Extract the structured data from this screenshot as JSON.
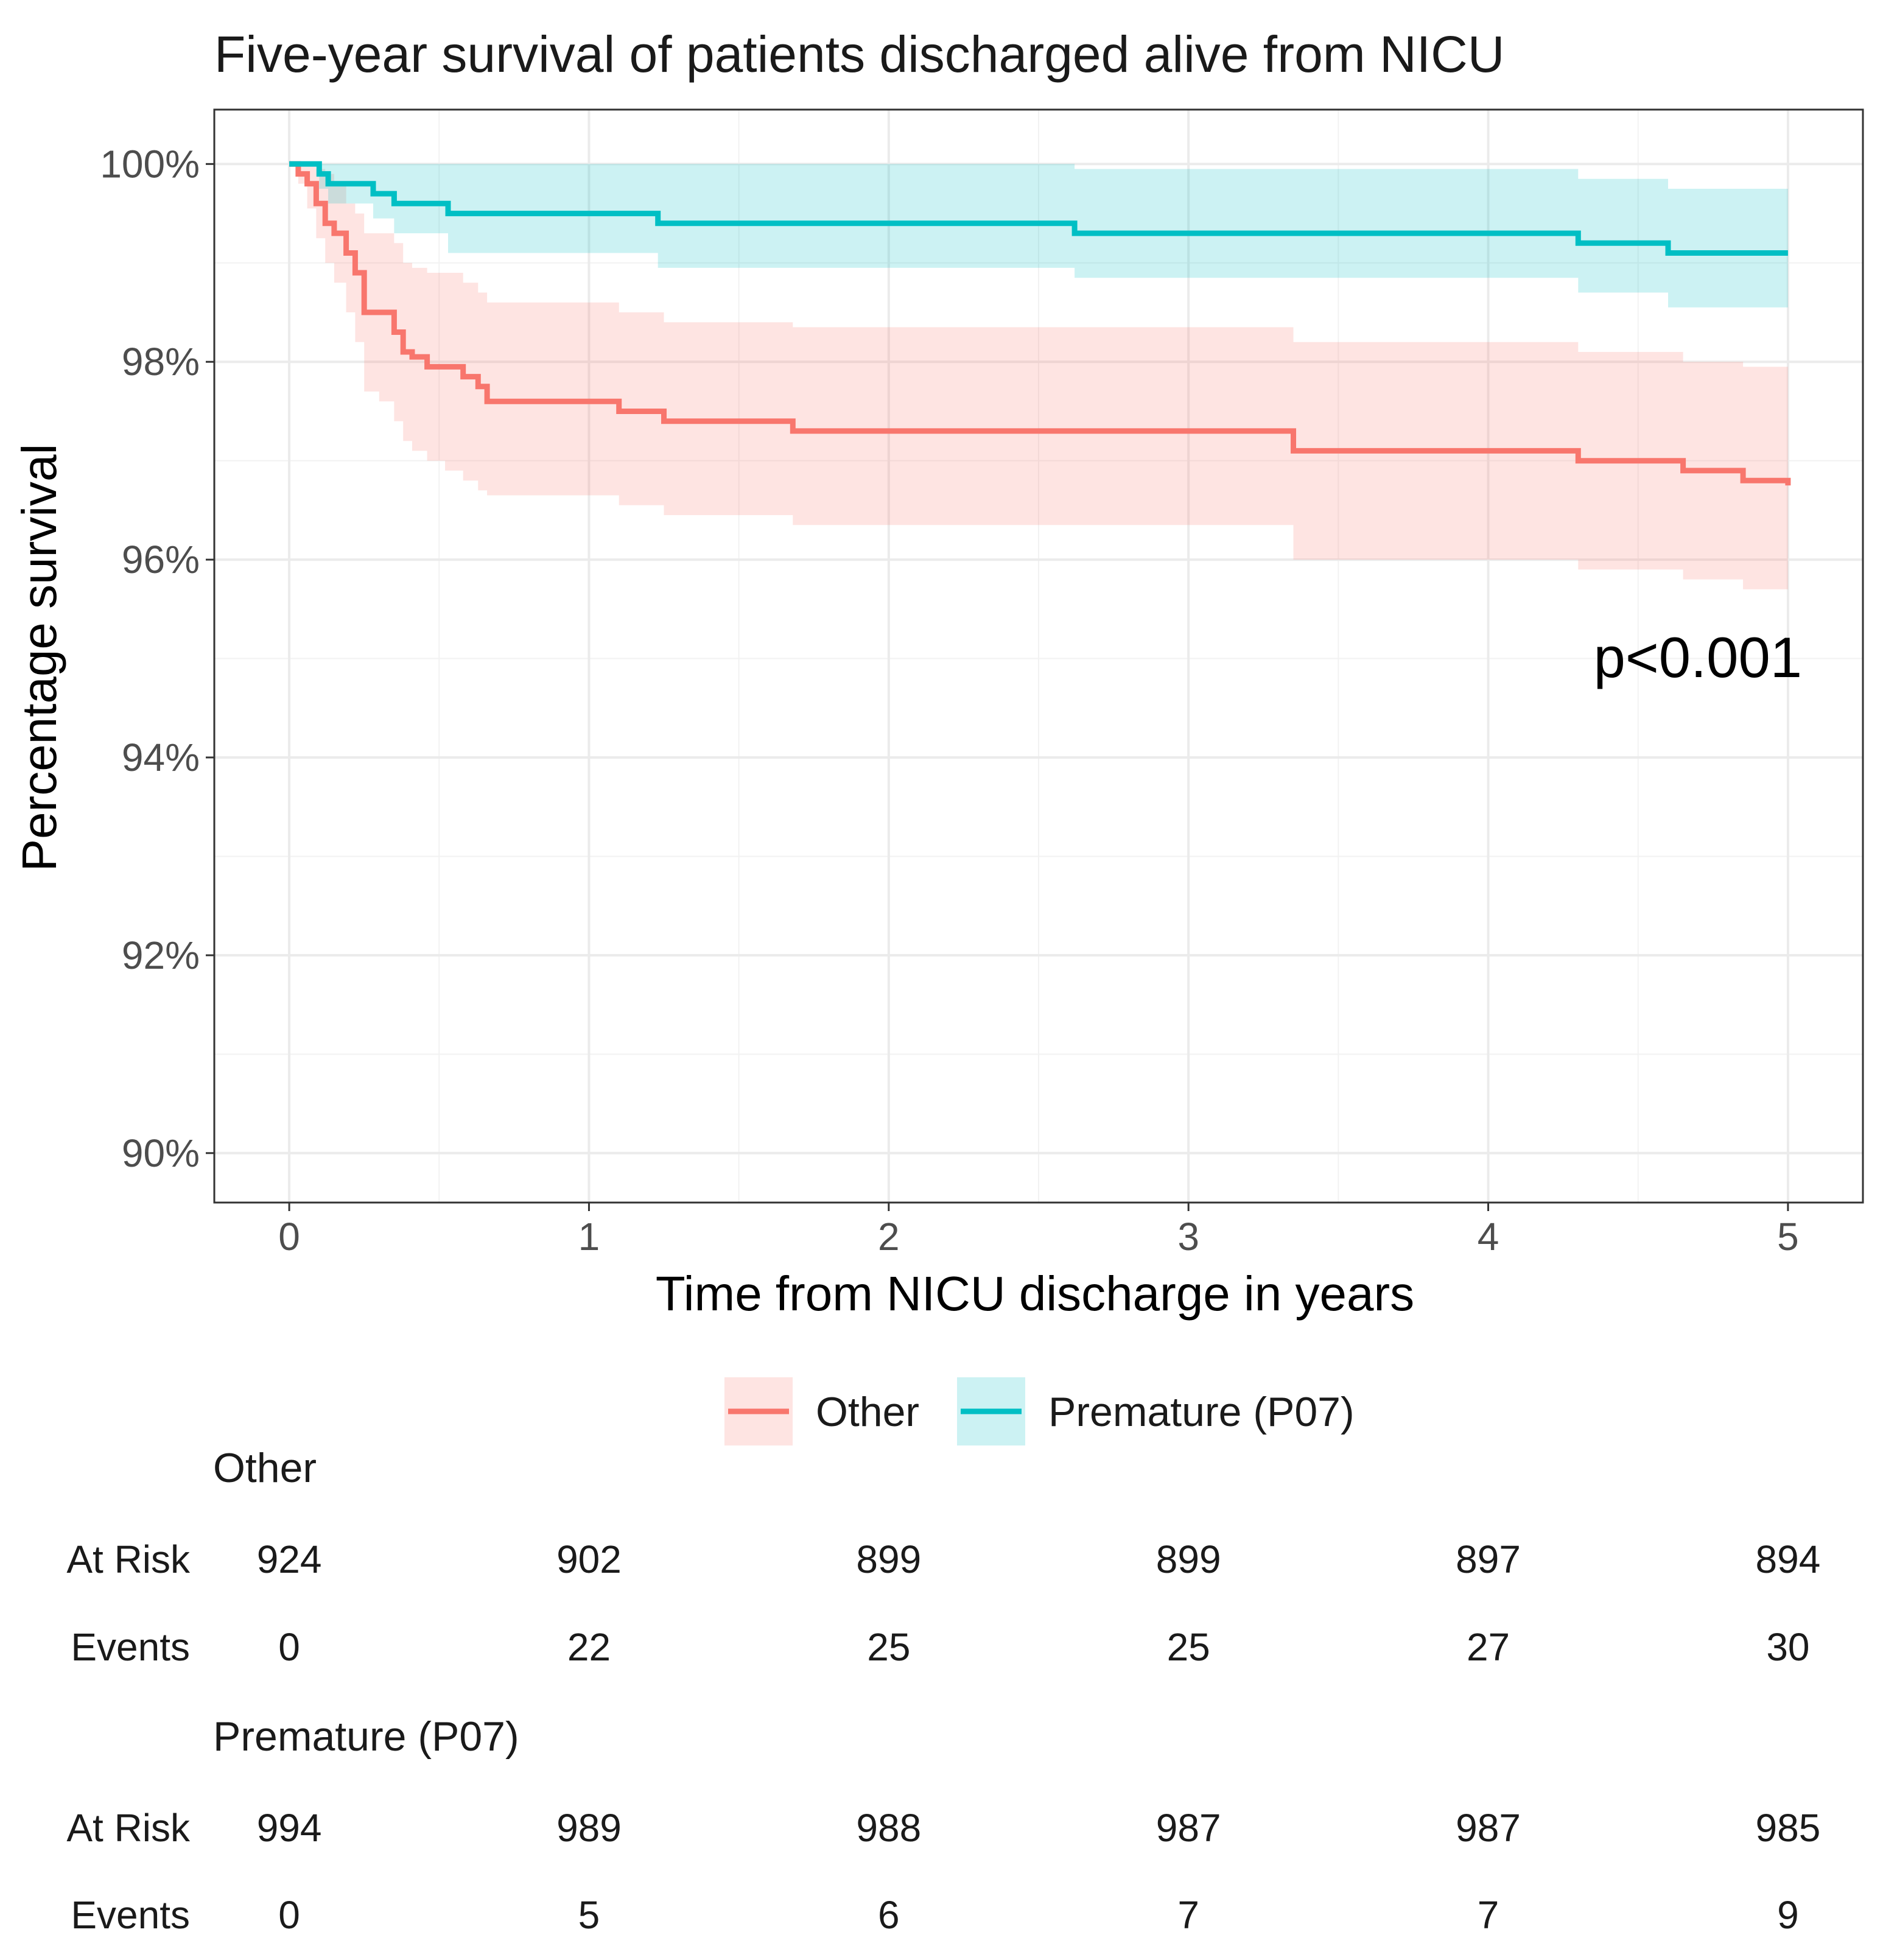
{
  "chart_data": {
    "type": "line",
    "subtype": "kaplan-meier",
    "title": "Five-year survival of patients discharged alive from NICU",
    "xlabel": "Time from NICU discharge in years",
    "ylabel": "Percentage survival",
    "xlim": [
      -0.25,
      5.25
    ],
    "ylim": [
      89.5,
      100.55
    ],
    "x_ticks": [
      0,
      1,
      2,
      3,
      4,
      5
    ],
    "y_ticks": [
      90,
      92,
      94,
      96,
      98,
      100
    ],
    "y_tick_labels": [
      "90%",
      "92%",
      "94%",
      "96%",
      "98%",
      "100%"
    ],
    "grid": true,
    "annotation": "p<0.001",
    "legend_position": "bottom",
    "series": [
      {
        "name": "Other",
        "color": "#F8766D",
        "fill": "#F8766D",
        "time": [
          0,
          0.03,
          0.06,
          0.09,
          0.12,
          0.15,
          0.19,
          0.22,
          0.25,
          0.3,
          0.35,
          0.38,
          0.41,
          0.46,
          0.52,
          0.58,
          0.63,
          0.66,
          1.1,
          1.25,
          1.68,
          3.35,
          4.3,
          4.65,
          4.85,
          5.0
        ],
        "survival": [
          100,
          99.9,
          99.8,
          99.6,
          99.4,
          99.3,
          99.1,
          98.9,
          98.5,
          98.5,
          98.3,
          98.1,
          98.05,
          97.95,
          97.95,
          97.85,
          97.75,
          97.6,
          97.5,
          97.4,
          97.3,
          97.1,
          97.0,
          96.9,
          96.8,
          96.75
        ],
        "lower": [
          100,
          99.8,
          99.55,
          99.25,
          99.0,
          98.8,
          98.5,
          98.2,
          97.7,
          97.6,
          97.4,
          97.2,
          97.1,
          97.0,
          96.9,
          96.8,
          96.7,
          96.65,
          96.55,
          96.45,
          96.35,
          96.0,
          95.9,
          95.8,
          95.7,
          95.6
        ],
        "upper": [
          100,
          100,
          100,
          99.95,
          99.9,
          99.8,
          99.6,
          99.5,
          99.3,
          99.3,
          99.2,
          99.0,
          98.95,
          98.9,
          98.9,
          98.8,
          98.7,
          98.6,
          98.5,
          98.4,
          98.35,
          98.2,
          98.1,
          98.0,
          97.95,
          97.9
        ]
      },
      {
        "name": "Premature (P07)",
        "color": "#00BFC4",
        "fill": "#00BFC4",
        "time": [
          0,
          0.1,
          0.13,
          0.28,
          0.35,
          0.53,
          1.23,
          2.62,
          4.3,
          4.6,
          5.0
        ],
        "survival": [
          100,
          99.9,
          99.8,
          99.7,
          99.6,
          99.5,
          99.4,
          99.3,
          99.2,
          99.1,
          99.1
        ],
        "lower": [
          100,
          99.75,
          99.6,
          99.45,
          99.3,
          99.1,
          98.95,
          98.85,
          98.7,
          98.55,
          98.5
        ],
        "upper": [
          100,
          100,
          100,
          100,
          100,
          100,
          100,
          99.95,
          99.85,
          99.75,
          99.7
        ]
      }
    ],
    "risk_table": {
      "times": [
        0,
        1,
        2,
        3,
        4,
        5
      ],
      "row_labels": {
        "at_risk": "At Risk",
        "events": "Events"
      },
      "groups": [
        {
          "name": "Other",
          "at_risk": [
            "924",
            "902",
            "899",
            "899",
            "897",
            "894"
          ],
          "events": [
            "0",
            "22",
            "25",
            "25",
            "27",
            "30"
          ]
        },
        {
          "name": "Premature (P07)",
          "at_risk": [
            "994",
            "989",
            "988",
            "987",
            "987",
            "985"
          ],
          "events": [
            "0",
            "5",
            "6",
            "7",
            "7",
            "9"
          ]
        }
      ]
    }
  }
}
